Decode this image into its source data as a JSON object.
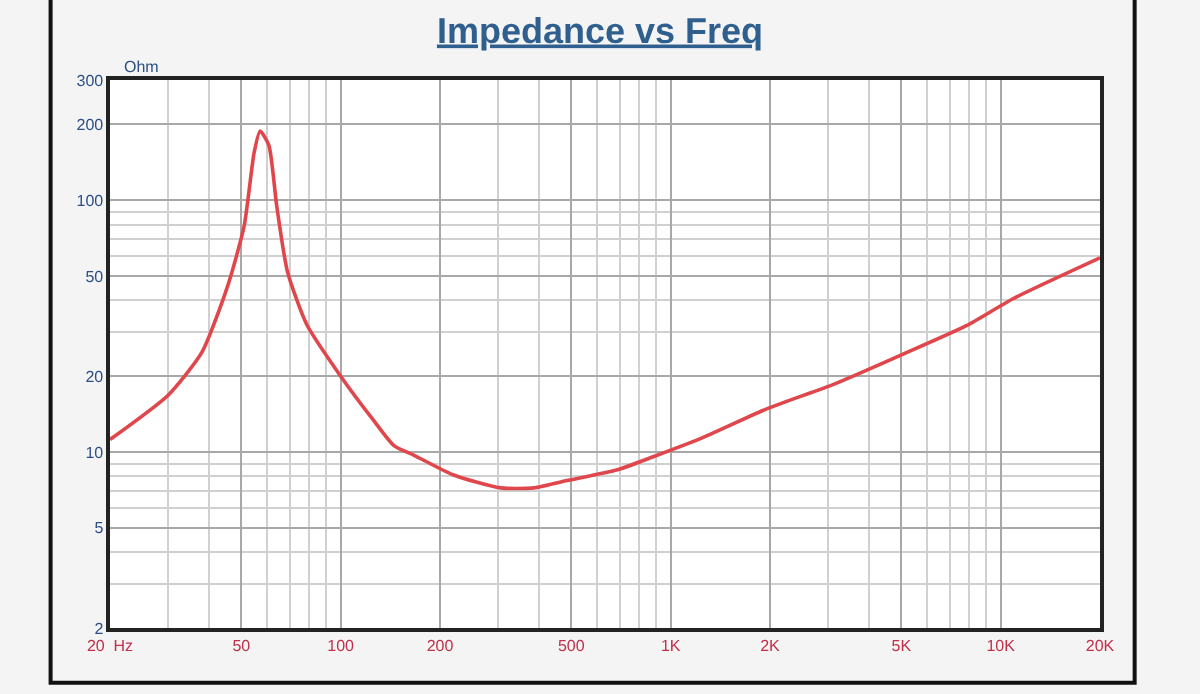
{
  "chart_data": {
    "type": "line",
    "title": "Impedance vs Freq",
    "ylabel": "Ohm",
    "x": [
      20,
      30,
      38,
      45.5,
      51,
      54.7,
      57,
      60.6,
      64,
      69,
      79,
      100,
      125,
      145,
      167,
      220,
      305,
      385,
      485,
      690,
      890,
      1230,
      1970,
      3130,
      4970,
      7900,
      10900,
      20000
    ],
    "series": [
      {
        "color": "#e0474c",
        "values": [
          11.2,
          16.8,
          24.9,
          45.8,
          79,
          155,
          188,
          165,
          95,
          52,
          32,
          20,
          13.5,
          10.6,
          9.7,
          8.1,
          7.2,
          7.2,
          7.7,
          8.5,
          9.6,
          11.3,
          14.9,
          18.6,
          24.2,
          31.8,
          40.6,
          59
        ]
      }
    ],
    "log": "xy",
    "xlim": [
      20,
      20000
    ],
    "ylim": [
      2,
      300
    ],
    "xticks": [
      {
        "value": 20,
        "label": "20  Hz"
      },
      50,
      100,
      200,
      500,
      {
        "value": 1000,
        "label": "1K"
      },
      {
        "value": 2000,
        "label": "2K"
      },
      {
        "value": 5000,
        "label": "5K"
      },
      {
        "value": 10000,
        "label": "10K"
      },
      {
        "value": 20000,
        "label": "20K"
      }
    ],
    "yticks": [
      2,
      5,
      10,
      20,
      50,
      100,
      200,
      300
    ],
    "grid": true,
    "marker": "none",
    "line_style": "solid"
  }
}
